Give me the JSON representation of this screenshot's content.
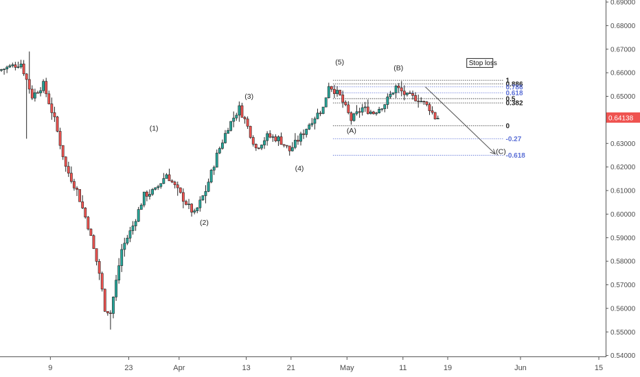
{
  "chart_data": {
    "type": "candlestick",
    "symbol_price": "0.64138",
    "ylim": [
      0.538,
      0.695
    ],
    "y_ticks": [
      "0.69000",
      "0.68000",
      "0.67000",
      "0.66000",
      "0.65000",
      "0.64000",
      "0.63000",
      "0.62000",
      "0.61000",
      "0.60000",
      "0.59000",
      "0.58000",
      "0.57000",
      "0.56000",
      "0.55000",
      "0.54000"
    ],
    "x_ticks": [
      {
        "label": "9",
        "day": 9
      },
      {
        "label": "23",
        "day": 23
      },
      {
        "label": "Apr",
        "day": 32
      },
      {
        "label": "13",
        "day": 44
      },
      {
        "label": "21",
        "day": 52
      },
      {
        "label": "May",
        "day": 62
      },
      {
        "label": "11",
        "day": 72
      },
      {
        "label": "19",
        "day": 80
      },
      {
        "label": "Jun",
        "day": 93
      },
      {
        "label": "15",
        "day": 107
      }
    ],
    "anchors": [
      [
        0,
        0.661
      ],
      [
        4,
        0.664
      ],
      [
        6,
        0.65
      ],
      [
        8,
        0.655
      ],
      [
        10,
        0.64
      ],
      [
        12,
        0.62
      ],
      [
        14,
        0.61
      ],
      [
        16,
        0.595
      ],
      [
        18,
        0.575
      ],
      [
        19,
        0.56
      ],
      [
        20,
        0.558
      ],
      [
        22,
        0.585
      ],
      [
        24,
        0.595
      ],
      [
        26,
        0.608
      ],
      [
        28,
        0.61
      ],
      [
        30,
        0.617
      ],
      [
        32,
        0.61
      ],
      [
        34,
        0.603
      ],
      [
        35,
        0.6
      ],
      [
        37,
        0.61
      ],
      [
        39,
        0.625
      ],
      [
        41,
        0.637
      ],
      [
        43,
        0.645
      ],
      [
        44,
        0.64
      ],
      [
        46,
        0.628
      ],
      [
        48,
        0.633
      ],
      [
        50,
        0.632
      ],
      [
        52,
        0.627
      ],
      [
        54,
        0.633
      ],
      [
        56,
        0.64
      ],
      [
        58,
        0.645
      ],
      [
        59,
        0.655
      ],
      [
        61,
        0.65
      ],
      [
        63,
        0.64
      ],
      [
        65,
        0.645
      ],
      [
        67,
        0.643
      ],
      [
        69,
        0.647
      ],
      [
        71,
        0.654
      ],
      [
        73,
        0.65
      ],
      [
        75,
        0.649
      ],
      [
        77,
        0.645
      ],
      [
        78,
        0.641
      ]
    ],
    "wave_labels": [
      {
        "text": "(1)",
        "day": 27.5,
        "price": 0.6355
      },
      {
        "text": "(2)",
        "day": 36.5,
        "price": 0.5955
      },
      {
        "text": "(3)",
        "day": 44.5,
        "price": 0.649
      },
      {
        "text": "(4)",
        "day": 53.5,
        "price": 0.6185
      },
      {
        "text": "(5)",
        "day": 60.7,
        "price": 0.6635
      },
      {
        "text": "(A)",
        "day": 62.8,
        "price": 0.6345
      },
      {
        "text": "(B)",
        "day": 71.2,
        "price": 0.661
      },
      {
        "text": "(C)",
        "day": 89.5,
        "price": 0.6255
      }
    ],
    "fib_levels": [
      {
        "label": "1",
        "price": 0.6568,
        "color": "#222222"
      },
      {
        "label": "0.886",
        "price": 0.6553,
        "color": "#222222"
      },
      {
        "label": "0.786",
        "price": 0.654,
        "color": "#5b6fd6"
      },
      {
        "label": "0.618",
        "price": 0.6515,
        "color": "#5b6fd6"
      },
      {
        "label": "0.5",
        "price": 0.649,
        "color": "#222222"
      },
      {
        "label": "0.382",
        "price": 0.6472,
        "color": "#222222"
      },
      {
        "label": "0",
        "price": 0.6375,
        "color": "#222222"
      },
      {
        "label": "-0.27",
        "price": 0.632,
        "color": "#5b6fd6"
      },
      {
        "label": "-0.618",
        "price": 0.625,
        "color": "#5b6fd6"
      }
    ],
    "stop_loss_label": "Stop loss",
    "stop_loss_price": 0.664,
    "projection": {
      "from_day": 76,
      "from_price": 0.654,
      "to_day": 88.5,
      "to_price": 0.6255
    }
  }
}
